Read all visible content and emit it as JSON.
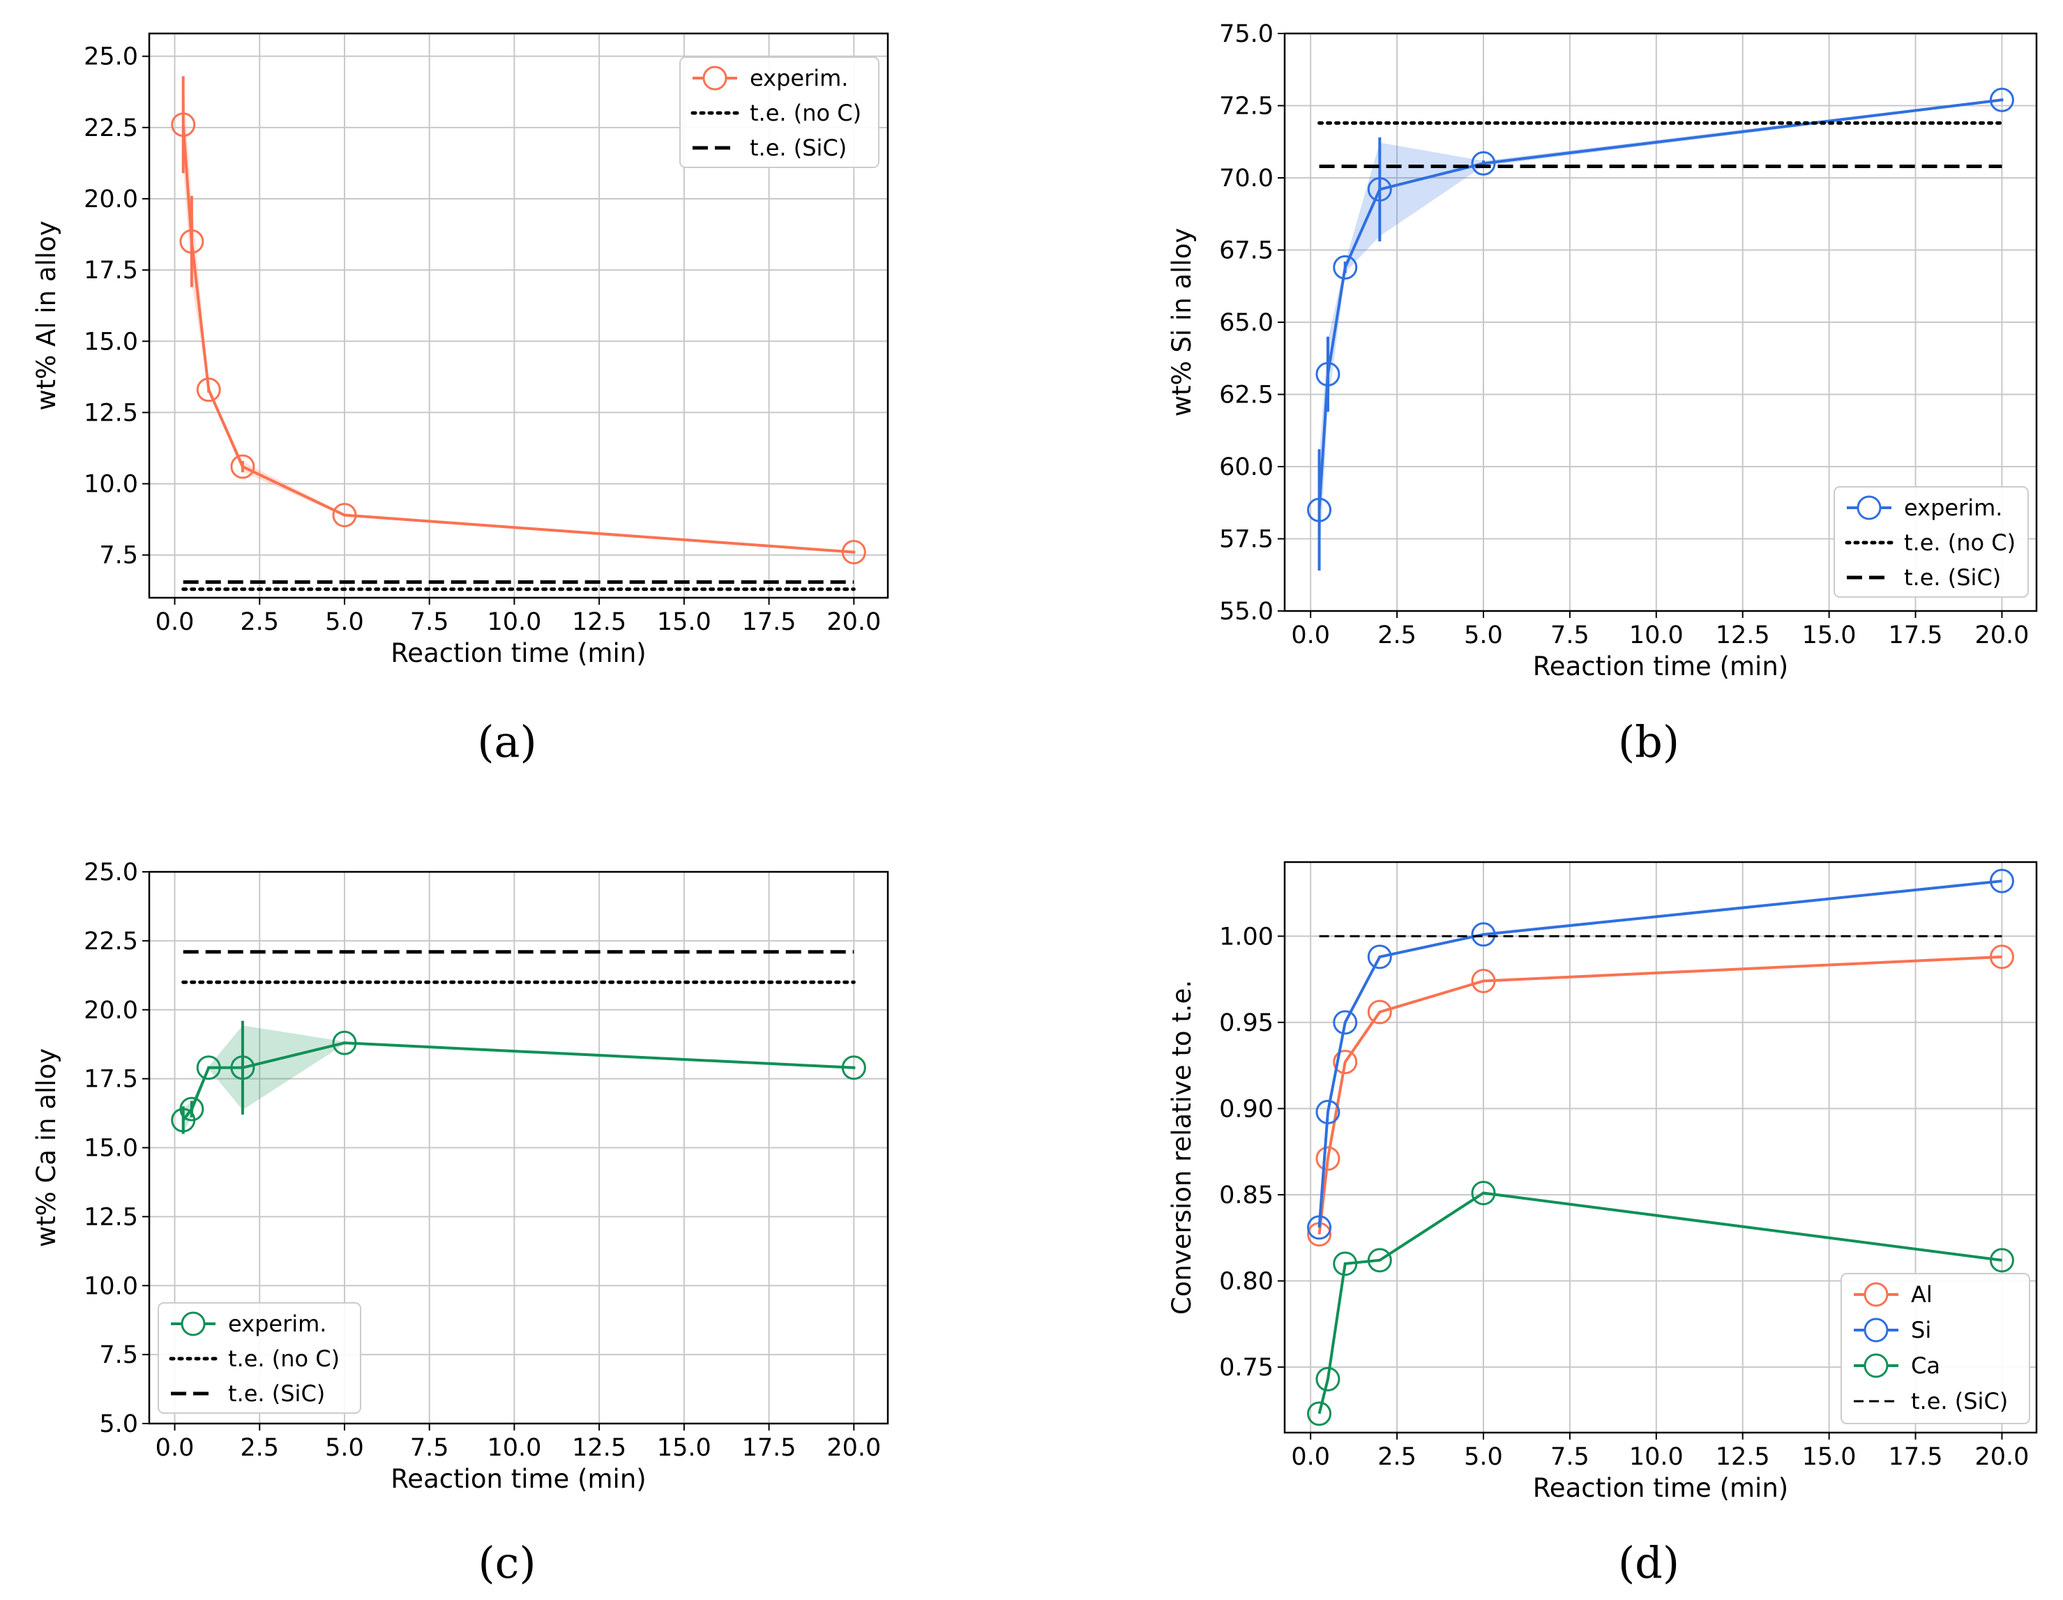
{
  "figure": {
    "common": {
      "xlabel": "Reaction time (min)",
      "xticks": [
        0,
        2.5,
        5,
        7.5,
        10,
        12.5,
        15,
        17.5,
        20
      ],
      "xtick_labels": [
        "0.0",
        "2.5",
        "5.0",
        "7.5",
        "10.0",
        "12.5",
        "15.0",
        "17.5",
        "20.0"
      ],
      "xlim": [
        -0.75,
        21.0
      ]
    },
    "colors": {
      "al": "#fa7251",
      "si": "#2f6fe0",
      "ca": "#109057",
      "ref": "#000000",
      "grid": "#c8c8c8"
    }
  },
  "chart_data": [
    {
      "id": "a",
      "panel_label": "(a)",
      "type": "line",
      "title": "",
      "xlabel": "Reaction time (min)",
      "ylabel": "wt% Al in alloy",
      "ylim": [
        6.0,
        25.8
      ],
      "yticks": [
        7.5,
        10,
        12.5,
        15,
        17.5,
        20,
        22.5,
        25
      ],
      "ytick_labels": [
        "7.5",
        "10.0",
        "12.5",
        "15.0",
        "17.5",
        "20.0",
        "22.5",
        "25.0"
      ],
      "color_key": "al",
      "legend_pos": "top-right",
      "series": [
        {
          "name": "experim.",
          "style": "line-marker",
          "x": [
            0.25,
            0.5,
            1,
            2,
            5,
            20
          ],
          "values": [
            22.6,
            18.5,
            13.3,
            10.6,
            8.9,
            7.6
          ],
          "yerr": [
            1.7,
            1.6,
            0.1,
            0.2,
            0.05,
            0.05
          ]
        },
        {
          "name": "t.e. (no C)",
          "style": "dotted",
          "x": [
            0.25,
            20
          ],
          "values": [
            6.3,
            6.3
          ]
        },
        {
          "name": "t.e. (SiC)",
          "style": "dashed",
          "x": [
            0.25,
            20
          ],
          "values": [
            6.55,
            6.55
          ]
        }
      ]
    },
    {
      "id": "b",
      "panel_label": "(b)",
      "type": "line",
      "title": "",
      "xlabel": "Reaction time (min)",
      "ylabel": "wt% Si in alloy",
      "ylim": [
        55.0,
        75.0
      ],
      "yticks": [
        55,
        57.5,
        60,
        62.5,
        65,
        67.5,
        70,
        72.5,
        75
      ],
      "ytick_labels": [
        "55.0",
        "57.5",
        "60.0",
        "62.5",
        "65.0",
        "67.5",
        "70.0",
        "72.5",
        "75.0"
      ],
      "color_key": "si",
      "legend_pos": "lower-right",
      "series": [
        {
          "name": "experim.",
          "style": "line-marker",
          "x": [
            0.25,
            0.5,
            1,
            2,
            5,
            20
          ],
          "values": [
            58.5,
            63.2,
            66.9,
            69.6,
            70.5,
            72.7
          ],
          "yerr": [
            2.1,
            1.3,
            0.2,
            1.8,
            0.1,
            0.05
          ]
        },
        {
          "name": "t.e. (no C)",
          "style": "dotted",
          "x": [
            0.25,
            20
          ],
          "values": [
            71.9,
            71.9
          ]
        },
        {
          "name": "t.e. (SiC)",
          "style": "dashed",
          "x": [
            0.25,
            20
          ],
          "values": [
            70.4,
            70.4
          ]
        }
      ]
    },
    {
      "id": "c",
      "panel_label": "(c)",
      "type": "line",
      "title": "",
      "xlabel": "Reaction time (min)",
      "ylabel": "wt% Ca in alloy",
      "ylim": [
        5.0,
        25.0
      ],
      "yticks": [
        5,
        7.5,
        10,
        12.5,
        15,
        17.5,
        20,
        22.5,
        25
      ],
      "ytick_labels": [
        "5.0",
        "7.5",
        "10.0",
        "12.5",
        "15.0",
        "17.5",
        "20.0",
        "22.5",
        "25.0"
      ],
      "color_key": "ca",
      "legend_pos": "lower-left",
      "series": [
        {
          "name": "experim.",
          "style": "line-marker",
          "x": [
            0.25,
            0.5,
            1,
            2,
            5,
            20
          ],
          "values": [
            16.0,
            16.4,
            17.9,
            17.9,
            18.8,
            17.9
          ],
          "yerr": [
            0.5,
            0.3,
            0.05,
            1.7,
            0.05,
            0.05
          ]
        },
        {
          "name": "t.e. (no C)",
          "style": "dotted",
          "x": [
            0.25,
            20
          ],
          "values": [
            21.0,
            21.0
          ]
        },
        {
          "name": "t.e. (SiC)",
          "style": "dashed",
          "x": [
            0.25,
            20
          ],
          "values": [
            22.1,
            22.1
          ]
        }
      ]
    },
    {
      "id": "d",
      "panel_label": "(d)",
      "type": "line",
      "title": "",
      "xlabel": "Reaction time (min)",
      "ylabel": "Conversion relative to t.e.",
      "ylim": [
        0.712,
        1.043
      ],
      "yticks": [
        0.75,
        0.8,
        0.85,
        0.9,
        0.95,
        1.0
      ],
      "ytick_labels": [
        "0.75",
        "0.80",
        "0.85",
        "0.90",
        "0.95",
        "1.00"
      ],
      "legend_pos": "lower-right",
      "series": [
        {
          "name": "Al",
          "style": "line-marker",
          "color_key": "al",
          "x": [
            0.25,
            0.5,
            1,
            2,
            5,
            20
          ],
          "values": [
            0.827,
            0.871,
            0.927,
            0.956,
            0.974,
            0.988
          ]
        },
        {
          "name": "Si",
          "style": "line-marker",
          "color_key": "si",
          "x": [
            0.25,
            0.5,
            1,
            2,
            5,
            20
          ],
          "values": [
            0.831,
            0.898,
            0.95,
            0.988,
            1.001,
            1.032
          ]
        },
        {
          "name": "Ca",
          "style": "line-marker",
          "color_key": "ca",
          "x": [
            0.25,
            0.5,
            1,
            2,
            5,
            20
          ],
          "values": [
            0.723,
            0.743,
            0.81,
            0.812,
            0.851,
            0.812
          ]
        },
        {
          "name": "t.e. (SiC)",
          "style": "dashed-thin",
          "x": [
            0.25,
            20
          ],
          "values": [
            1.0,
            1.0
          ]
        }
      ]
    }
  ]
}
